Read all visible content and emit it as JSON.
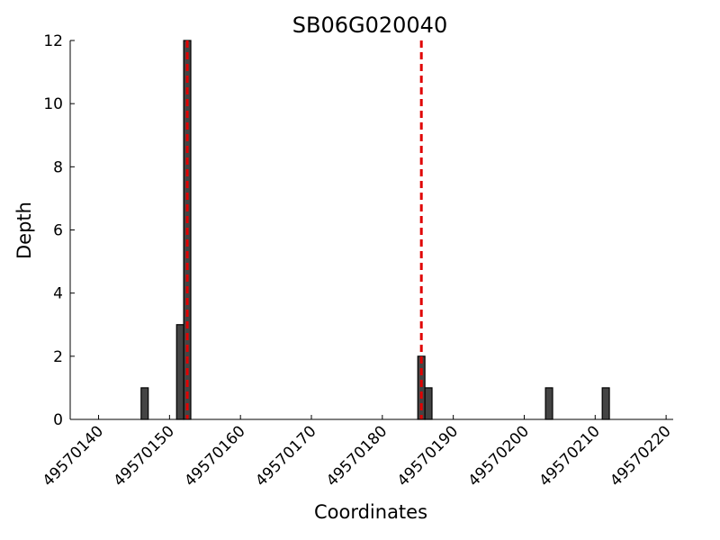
{
  "chart_data": {
    "type": "bar",
    "title": "SB06G020040",
    "x_label": "Coordinates",
    "y_label": "Depth",
    "x": [
      49570146,
      49570151,
      49570152,
      49570185,
      49570186,
      49570203,
      49570211
    ],
    "values": [
      1,
      3,
      12,
      2,
      1,
      1,
      1
    ],
    "color": "#444444",
    "markers": [
      49570152.5,
      49570185.5
    ],
    "marker_color": "#e00000",
    "xlim": [
      49570136,
      49570221
    ],
    "xticks": [
      49570140,
      49570150,
      49570160,
      49570170,
      49570180,
      49570190,
      49570200,
      49570210,
      49570220
    ],
    "ylim": [
      0,
      12
    ],
    "yticks": [
      0,
      2,
      4,
      6,
      8,
      10,
      12
    ]
  }
}
